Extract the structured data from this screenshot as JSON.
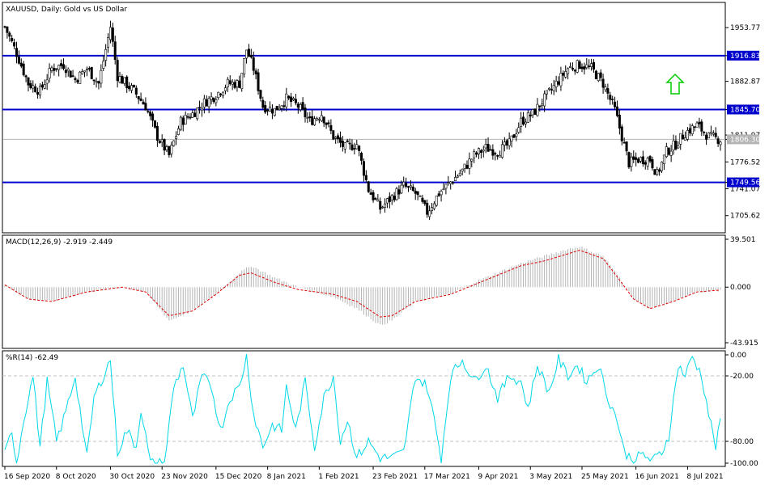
{
  "main": {
    "symbol_label": "XAUUSD, Daily:  Gold vs US Dollar",
    "y_ticks": [
      "1953.77",
      "1882.87",
      "1811.97",
      "1776.52",
      "1741.07",
      "1705.62"
    ],
    "levels": [
      {
        "label": "1916.83",
        "value": 1916.83
      },
      {
        "label": "1845.70",
        "value": 1845.7
      },
      {
        "label": "1749.56",
        "value": 1749.56
      }
    ],
    "current_label": "1806.30",
    "current_value": 1806.3,
    "ylim": [
      1684,
      1986
    ],
    "level_color": "#0000cc",
    "arrow_color": "#00cc00"
  },
  "macd": {
    "label": "MACD(12,26,9) -2.919 -2.449",
    "y_ticks": [
      "39.501",
      "0.000",
      "-43.915"
    ],
    "ylim": [
      -43.915,
      39.501
    ],
    "hist_color": "#b4b4b4",
    "signal_color": "#e00000"
  },
  "wpr": {
    "label": "%R(14) -62.49",
    "y_ticks": [
      "0.00",
      "-20.00",
      "-80.00",
      "-100.00"
    ],
    "ylim": [
      -100,
      0
    ],
    "line_color": "#00d8e8"
  },
  "x_labels": [
    "16 Sep 2020",
    "8 Oct 2020",
    "30 Oct 2020",
    "23 Nov 2020",
    "15 Dec 2020",
    "8 Jan 2021",
    "1 Feb 2021",
    "23 Feb 2021",
    "17 Mar 2021",
    "9 Apr 2021",
    "3 May 2021",
    "25 May 2021",
    "16 Jun 2021",
    "8 Jul 2021"
  ],
  "chart_data": {
    "type": "candlestick",
    "close_anchors": [
      [
        0,
        1955
      ],
      [
        5,
        1920
      ],
      [
        10,
        1880
      ],
      [
        15,
        1870
      ],
      [
        20,
        1900
      ],
      [
        25,
        1905
      ],
      [
        30,
        1885
      ],
      [
        35,
        1900
      ],
      [
        40,
        1880
      ],
      [
        45,
        1955
      ],
      [
        48,
        1890
      ],
      [
        55,
        1870
      ],
      [
        60,
        1850
      ],
      [
        65,
        1810
      ],
      [
        70,
        1785
      ],
      [
        75,
        1830
      ],
      [
        80,
        1840
      ],
      [
        85,
        1855
      ],
      [
        90,
        1865
      ],
      [
        95,
        1880
      ],
      [
        100,
        1880
      ],
      [
        103,
        1925
      ],
      [
        106,
        1900
      ],
      [
        110,
        1850
      ],
      [
        115,
        1845
      ],
      [
        120,
        1860
      ],
      [
        125,
        1850
      ],
      [
        130,
        1830
      ],
      [
        135,
        1840
      ],
      [
        140,
        1810
      ],
      [
        145,
        1795
      ],
      [
        150,
        1800
      ],
      [
        155,
        1740
      ],
      [
        160,
        1715
      ],
      [
        165,
        1730
      ],
      [
        170,
        1745
      ],
      [
        175,
        1735
      ],
      [
        180,
        1710
      ],
      [
        185,
        1735
      ],
      [
        190,
        1750
      ],
      [
        195,
        1765
      ],
      [
        200,
        1785
      ],
      [
        205,
        1795
      ],
      [
        210,
        1790
      ],
      [
        215,
        1800
      ],
      [
        220,
        1830
      ],
      [
        225,
        1840
      ],
      [
        230,
        1860
      ],
      [
        235,
        1880
      ],
      [
        240,
        1900
      ],
      [
        245,
        1905
      ],
      [
        250,
        1900
      ],
      [
        255,
        1880
      ],
      [
        260,
        1845
      ],
      [
        263,
        1810
      ],
      [
        266,
        1775
      ],
      [
        270,
        1780
      ],
      [
        275,
        1780
      ],
      [
        278,
        1760
      ],
      [
        282,
        1790
      ],
      [
        286,
        1800
      ],
      [
        290,
        1815
      ],
      [
        295,
        1825
      ],
      [
        300,
        1810
      ],
      [
        305,
        1806
      ]
    ],
    "macd_anchors": [
      [
        0,
        2
      ],
      [
        10,
        -10
      ],
      [
        20,
        -12
      ],
      [
        35,
        -4
      ],
      [
        50,
        0
      ],
      [
        60,
        -4
      ],
      [
        70,
        -28
      ],
      [
        80,
        -20
      ],
      [
        90,
        -6
      ],
      [
        100,
        12
      ],
      [
        105,
        18
      ],
      [
        115,
        8
      ],
      [
        125,
        0
      ],
      [
        140,
        -8
      ],
      [
        150,
        -18
      ],
      [
        160,
        -32
      ],
      [
        165,
        -28
      ],
      [
        175,
        -12
      ],
      [
        190,
        -6
      ],
      [
        200,
        4
      ],
      [
        210,
        12
      ],
      [
        220,
        20
      ],
      [
        230,
        26
      ],
      [
        240,
        32
      ],
      [
        245,
        34
      ],
      [
        255,
        26
      ],
      [
        262,
        8
      ],
      [
        268,
        -10
      ],
      [
        275,
        -18
      ],
      [
        285,
        -12
      ],
      [
        295,
        -4
      ],
      [
        305,
        -2.919
      ]
    ],
    "signal_anchors": [
      [
        0,
        2
      ],
      [
        10,
        -10
      ],
      [
        20,
        -12
      ],
      [
        35,
        -4
      ],
      [
        50,
        0
      ],
      [
        60,
        -4
      ],
      [
        70,
        -24
      ],
      [
        80,
        -20
      ],
      [
        90,
        -6
      ],
      [
        100,
        10
      ],
      [
        105,
        12
      ],
      [
        115,
        4
      ],
      [
        125,
        -2
      ],
      [
        140,
        -6
      ],
      [
        150,
        -12
      ],
      [
        160,
        -25
      ],
      [
        165,
        -24
      ],
      [
        175,
        -12
      ],
      [
        190,
        -6
      ],
      [
        200,
        2
      ],
      [
        210,
        10
      ],
      [
        220,
        18
      ],
      [
        230,
        22
      ],
      [
        240,
        28
      ],
      [
        245,
        31
      ],
      [
        255,
        24
      ],
      [
        262,
        6
      ],
      [
        268,
        -10
      ],
      [
        275,
        -18
      ],
      [
        285,
        -12
      ],
      [
        295,
        -4
      ],
      [
        305,
        -2.449
      ]
    ],
    "wpr_anchors": [
      [
        0,
        -92
      ],
      [
        3,
        -70
      ],
      [
        5,
        -100
      ],
      [
        8,
        -60
      ],
      [
        12,
        -20
      ],
      [
        15,
        -85
      ],
      [
        18,
        -25
      ],
      [
        22,
        -80
      ],
      [
        25,
        -60
      ],
      [
        30,
        -20
      ],
      [
        35,
        -95
      ],
      [
        38,
        -40
      ],
      [
        42,
        -20
      ],
      [
        45,
        -5
      ],
      [
        48,
        -90
      ],
      [
        52,
        -70
      ],
      [
        56,
        -85
      ],
      [
        58,
        -50
      ],
      [
        62,
        -100
      ],
      [
        68,
        -100
      ],
      [
        72,
        -30
      ],
      [
        76,
        -10
      ],
      [
        80,
        -60
      ],
      [
        84,
        -20
      ],
      [
        88,
        -30
      ],
      [
        92,
        -70
      ],
      [
        96,
        -40
      ],
      [
        100,
        -30
      ],
      [
        103,
        -2
      ],
      [
        106,
        -55
      ],
      [
        110,
        -85
      ],
      [
        114,
        -65
      ],
      [
        118,
        -70
      ],
      [
        120,
        -30
      ],
      [
        124,
        -70
      ],
      [
        128,
        -25
      ],
      [
        132,
        -85
      ],
      [
        136,
        -40
      ],
      [
        140,
        -20
      ],
      [
        143,
        -80
      ],
      [
        146,
        -60
      ],
      [
        150,
        -95
      ],
      [
        155,
        -80
      ],
      [
        160,
        -95
      ],
      [
        165,
        -95
      ],
      [
        170,
        -90
      ],
      [
        175,
        -20
      ],
      [
        180,
        -30
      ],
      [
        183,
        -60
      ],
      [
        186,
        -95
      ],
      [
        190,
        -20
      ],
      [
        195,
        -5
      ],
      [
        200,
        -25
      ],
      [
        205,
        -10
      ],
      [
        210,
        -40
      ],
      [
        215,
        -20
      ],
      [
        220,
        -25
      ],
      [
        223,
        -50
      ],
      [
        227,
        -10
      ],
      [
        232,
        -35
      ],
      [
        236,
        -5
      ],
      [
        240,
        -20
      ],
      [
        244,
        -10
      ],
      [
        248,
        -25
      ],
      [
        253,
        -10
      ],
      [
        257,
        -40
      ],
      [
        261,
        -60
      ],
      [
        264,
        -90
      ],
      [
        268,
        -97
      ],
      [
        272,
        -92
      ],
      [
        276,
        -98
      ],
      [
        280,
        -90
      ],
      [
        283,
        -75
      ],
      [
        287,
        -10
      ],
      [
        290,
        -20
      ],
      [
        293,
        -2
      ],
      [
        297,
        -20
      ],
      [
        300,
        -55
      ],
      [
        303,
        -85
      ],
      [
        305,
        -62.49
      ]
    ]
  }
}
